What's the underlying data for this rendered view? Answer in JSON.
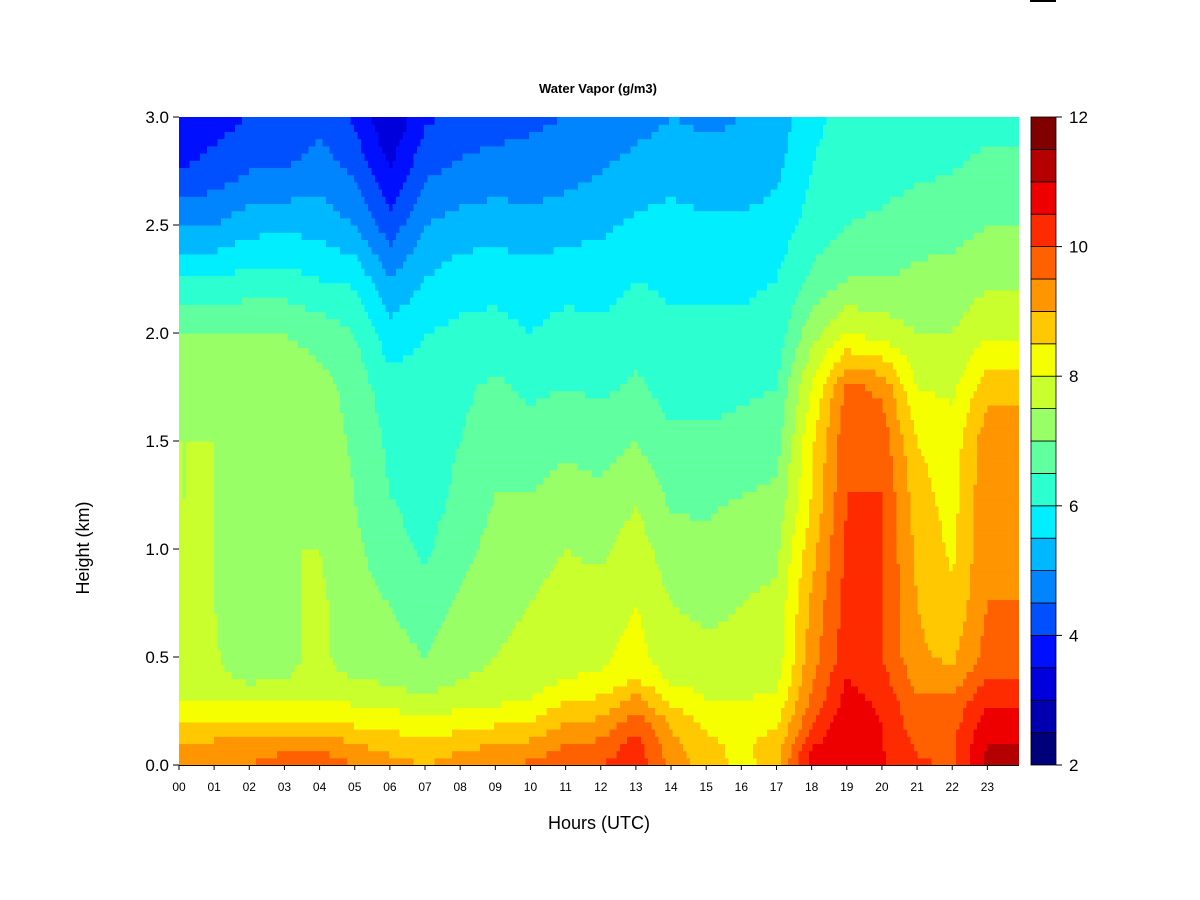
{
  "chart_data": {
    "type": "heatmap",
    "title": "Water Vapor (g/m3)",
    "xlabel": "Hours (UTC)",
    "ylabel": "Height (km)",
    "x_tick_labels": [
      "00",
      "01",
      "02",
      "03",
      "04",
      "05",
      "06",
      "07",
      "08",
      "09",
      "10",
      "11",
      "12",
      "13",
      "14",
      "15",
      "16",
      "17",
      "18",
      "19",
      "20",
      "21",
      "22",
      "23"
    ],
    "xlim": [
      0,
      23.9
    ],
    "y_tick_labels": [
      "0.0",
      "0.5",
      "1.0",
      "1.5",
      "2.0",
      "2.5",
      "3.0"
    ],
    "y_ticks": [
      0.0,
      0.5,
      1.0,
      1.5,
      2.0,
      2.5,
      3.0
    ],
    "ylim": [
      0,
      3.0
    ],
    "colorbar": {
      "min": 2,
      "max": 12,
      "step": 0.5,
      "tick_values": [
        2,
        4,
        6,
        8,
        10,
        12
      ],
      "tick_labels": [
        "2",
        "4",
        "6",
        "8",
        "10",
        "12"
      ],
      "colors": [
        "#00007a",
        "#0000b0",
        "#0000dd",
        "#0010ff",
        "#0050ff",
        "#0085ff",
        "#00b8ff",
        "#00eeff",
        "#2cffd0",
        "#60ff9f",
        "#98ff66",
        "#c8ff2c",
        "#f6ff00",
        "#ffc800",
        "#ff9500",
        "#ff6000",
        "#ff2b00",
        "#ee0000",
        "#b50000",
        "#800000"
      ]
    },
    "height_levels_km": [
      0.0,
      0.1,
      0.2,
      0.3,
      0.4,
      0.5,
      0.75,
      1.0,
      1.25,
      1.5,
      1.75,
      2.0,
      2.25,
      2.5,
      2.75,
      3.0
    ],
    "profiles": [
      {
        "hour": 0,
        "values": [
          9.3,
          9.0,
          8.6,
          8.0,
          7.8,
          7.7,
          7.6,
          7.6,
          7.5,
          7.5,
          7.4,
          7.0,
          6.0,
          5.0,
          4.0,
          3.5
        ]
      },
      {
        "hour": 1,
        "values": [
          9.5,
          9.1,
          8.5,
          7.9,
          7.7,
          7.6,
          7.5,
          7.5,
          7.5,
          7.5,
          7.4,
          7.0,
          6.0,
          5.0,
          4.2,
          3.8
        ]
      },
      {
        "hour": 2,
        "values": [
          9.5,
          9.1,
          8.5,
          7.9,
          7.4,
          7.0,
          7.1,
          7.3,
          7.4,
          7.4,
          7.3,
          7.0,
          6.2,
          5.3,
          4.5,
          4.0
        ]
      },
      {
        "hour": 3,
        "values": [
          9.8,
          9.3,
          8.5,
          8.0,
          7.5,
          7.4,
          7.4,
          7.5,
          7.5,
          7.5,
          7.4,
          7.0,
          6.2,
          5.4,
          4.5,
          4.0
        ]
      },
      {
        "hour": 4,
        "values": [
          9.9,
          9.3,
          8.6,
          8.0,
          7.6,
          7.6,
          7.6,
          7.5,
          7.4,
          7.3,
          7.2,
          6.8,
          6.0,
          5.3,
          4.8,
          4.3
        ]
      },
      {
        "hour": 5,
        "values": [
          9.5,
          9.0,
          8.4,
          7.9,
          7.5,
          7.3,
          7.2,
          7.1,
          7.0,
          6.9,
          6.8,
          6.5,
          5.9,
          5.0,
          4.4,
          3.9
        ]
      },
      {
        "hour": 6,
        "values": [
          9.2,
          8.8,
          8.3,
          7.8,
          7.4,
          7.2,
          7.0,
          6.7,
          6.5,
          6.4,
          6.2,
          5.7,
          5.0,
          4.2,
          3.5,
          3.0
        ]
      },
      {
        "hour": 7,
        "values": [
          9.0,
          8.6,
          8.1,
          7.6,
          7.2,
          7.0,
          6.7,
          6.4,
          6.3,
          6.3,
          6.2,
          6.0,
          5.5,
          5.0,
          4.4,
          3.9
        ]
      },
      {
        "hour": 8,
        "values": [
          9.3,
          8.8,
          8.3,
          7.8,
          7.5,
          7.3,
          7.1,
          6.8,
          6.6,
          6.5,
          6.4,
          6.1,
          5.8,
          5.2,
          4.6,
          4.2
        ]
      },
      {
        "hour": 9,
        "values": [
          9.5,
          9.0,
          8.4,
          7.9,
          7.6,
          7.5,
          7.4,
          7.2,
          7.0,
          6.8,
          6.6,
          6.2,
          5.8,
          5.3,
          4.7,
          4.3
        ]
      },
      {
        "hour": 10,
        "values": [
          9.6,
          9.1,
          8.5,
          8.0,
          7.7,
          7.6,
          7.5,
          7.3,
          7.0,
          6.7,
          6.4,
          6.0,
          5.7,
          5.2,
          4.7,
          4.4
        ]
      },
      {
        "hour": 11,
        "values": [
          9.9,
          9.5,
          9.0,
          8.5,
          8.0,
          7.8,
          7.7,
          7.5,
          7.2,
          6.9,
          6.5,
          6.2,
          5.8,
          5.3,
          4.8,
          4.5
        ]
      },
      {
        "hour": 12,
        "values": [
          10.0,
          9.6,
          9.1,
          8.6,
          8.1,
          7.9,
          7.7,
          7.4,
          7.1,
          6.8,
          6.4,
          6.1,
          5.8,
          5.4,
          5.0,
          4.6
        ]
      },
      {
        "hour": 13,
        "values": [
          10.4,
          10.2,
          9.8,
          9.2,
          8.5,
          8.2,
          8.0,
          7.8,
          7.4,
          7.0,
          6.6,
          6.3,
          6.0,
          5.6,
          5.2,
          4.8
        ]
      },
      {
        "hour": 14,
        "values": [
          9.3,
          9.2,
          8.9,
          8.4,
          7.9,
          7.7,
          7.5,
          7.2,
          6.9,
          6.6,
          6.3,
          6.1,
          5.9,
          5.7,
          5.3,
          5.0
        ]
      },
      {
        "hour": 15,
        "values": [
          8.8,
          8.6,
          8.4,
          8.0,
          7.8,
          7.6,
          7.4,
          7.1,
          6.9,
          6.6,
          6.3,
          6.1,
          5.9,
          5.6,
          5.2,
          4.9
        ]
      },
      {
        "hour": 16,
        "values": [
          8.3,
          8.4,
          8.3,
          8.0,
          7.8,
          7.6,
          7.5,
          7.3,
          7.0,
          6.7,
          6.4,
          6.1,
          5.9,
          5.6,
          5.2,
          5.0
        ]
      },
      {
        "hour": 17,
        "values": [
          8.8,
          8.7,
          8.4,
          8.1,
          7.9,
          7.7,
          7.6,
          7.4,
          7.1,
          6.8,
          6.5,
          6.2,
          6.0,
          5.7,
          5.4,
          5.2
        ]
      },
      {
        "hour": 18,
        "values": [
          10.8,
          10.4,
          9.9,
          9.6,
          9.4,
          9.3,
          9.1,
          8.8,
          8.5,
          8.4,
          8.0,
          7.3,
          6.6,
          6.2,
          6.0,
          5.9
        ]
      },
      {
        "hour": 19,
        "values": [
          11.0,
          10.9,
          10.9,
          10.7,
          10.5,
          10.3,
          10.2,
          10.1,
          10.0,
          9.9,
          9.6,
          8.0,
          7.0,
          6.5,
          6.3,
          6.1
        ]
      },
      {
        "hour": 20,
        "values": [
          10.6,
          10.5,
          10.5,
          10.4,
          10.2,
          10.0,
          10.0,
          10.0,
          10.0,
          9.8,
          9.4,
          7.8,
          7.0,
          6.6,
          6.3,
          6.1
        ]
      },
      {
        "hour": 21,
        "values": [
          10.1,
          9.9,
          9.7,
          9.6,
          9.3,
          9.1,
          9.0,
          8.9,
          8.7,
          8.5,
          8.0,
          7.5,
          7.1,
          6.8,
          6.4,
          6.2
        ]
      },
      {
        "hour": 22,
        "values": [
          9.9,
          9.9,
          9.8,
          9.6,
          9.2,
          8.9,
          8.6,
          8.4,
          8.3,
          8.2,
          7.9,
          7.5,
          7.2,
          6.8,
          6.5,
          6.3
        ]
      },
      {
        "hour": 23,
        "values": [
          11.2,
          11.0,
          10.7,
          10.4,
          10.0,
          9.7,
          9.5,
          9.4,
          9.4,
          9.3,
          8.8,
          7.9,
          7.4,
          7.0,
          6.6,
          6.4
        ]
      }
    ]
  }
}
